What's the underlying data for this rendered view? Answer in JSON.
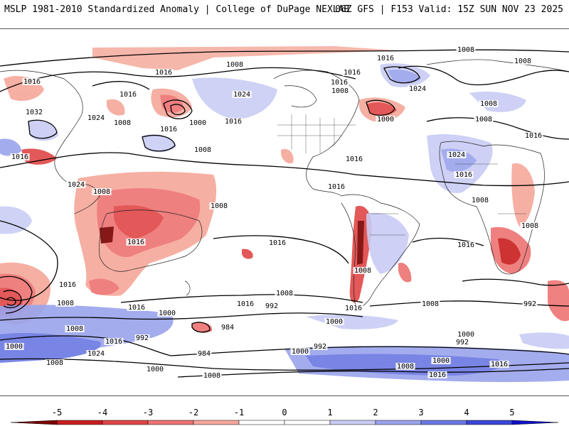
{
  "header": {
    "title": "MSLP 1981-2010 Standardized Anomaly | College of DuPage NEXLAB",
    "run_info": "06Z GFS | F153 Valid: 15Z SUN NOV 23 2025"
  },
  "colorbar": {
    "ticks": [
      "-5",
      "-4",
      "-3",
      "-2",
      "-1",
      "0",
      "1",
      "2",
      "3",
      "4",
      "5"
    ],
    "colors": [
      "#7a0000",
      "#c81e1e",
      "#e04646",
      "#ee7373",
      "#f6a79a",
      "#ffffff",
      "#ffffff",
      "#c9cdf4",
      "#9aa4ec",
      "#6b78e2",
      "#3b46d6",
      "#1010c8"
    ]
  },
  "contour_labels": [
    {
      "text": "1008"
    },
    {
      "text": "1008"
    },
    {
      "text": "1016"
    },
    {
      "text": "1016"
    },
    {
      "text": "1008"
    },
    {
      "text": "1016"
    },
    {
      "text": "1024"
    },
    {
      "text": "1016"
    },
    {
      "text": "1016"
    },
    {
      "text": "1032"
    },
    {
      "text": "1024"
    },
    {
      "text": "1008"
    },
    {
      "text": "1000"
    },
    {
      "text": "1016"
    },
    {
      "text": "1024"
    },
    {
      "text": "1016"
    },
    {
      "text": "1008"
    },
    {
      "text": "1016"
    },
    {
      "text": "1008"
    },
    {
      "text": "1008"
    },
    {
      "text": "1024"
    },
    {
      "text": "1000"
    },
    {
      "text": "1016"
    },
    {
      "text": "1008"
    },
    {
      "text": "1008"
    },
    {
      "text": "1024"
    },
    {
      "text": "1016"
    },
    {
      "text": "1016"
    },
    {
      "text": "1008"
    },
    {
      "text": "1016"
    },
    {
      "text": "1016"
    },
    {
      "text": "1008"
    },
    {
      "text": "1008"
    },
    {
      "text": "1016"
    },
    {
      "text": "1016"
    },
    {
      "text": "1016"
    },
    {
      "text": "1016"
    },
    {
      "text": "1008"
    },
    {
      "text": "1000"
    },
    {
      "text": "1016"
    },
    {
      "text": "1008"
    },
    {
      "text": "1016"
    },
    {
      "text": "992"
    },
    {
      "text": "1016"
    },
    {
      "text": "1008"
    },
    {
      "text": "1000"
    },
    {
      "text": "1008"
    },
    {
      "text": "992"
    },
    {
      "text": "1000"
    },
    {
      "text": "984"
    },
    {
      "text": "992"
    },
    {
      "text": "1016"
    },
    {
      "text": "1008"
    },
    {
      "text": "1024"
    },
    {
      "text": "984"
    },
    {
      "text": "1000"
    },
    {
      "text": "992"
    },
    {
      "text": "1000"
    },
    {
      "text": "1000"
    },
    {
      "text": "1008"
    },
    {
      "text": "1016"
    },
    {
      "text": "1008"
    },
    {
      "text": "1016"
    },
    {
      "text": "1000"
    },
    {
      "text": "1008"
    },
    {
      "text": "992"
    }
  ]
}
